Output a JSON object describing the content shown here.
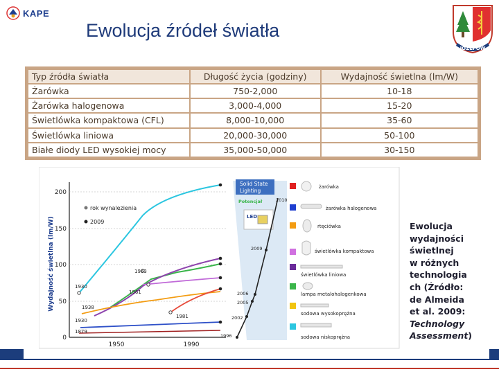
{
  "header": {
    "logo_text": "KAPE",
    "title": "Ewolucja źródeł światła",
    "crest_text": "JÓZEFÓW"
  },
  "table": {
    "headers": [
      "Typ źródła światła",
      "Długość życia (godziny)",
      "Wydajność świetlna (lm/W)"
    ],
    "rows": [
      [
        "Żarówka",
        "750-2,000",
        "10-18"
      ],
      [
        "Żarówka halogenowa",
        "3,000-4,000",
        "15-20"
      ],
      [
        "Świetlówka kompaktowa (CFL)",
        "8,000-10,000",
        "35-60"
      ],
      [
        "Świetlówka liniowa",
        "20,000-30,000",
        "50-100"
      ],
      [
        "Białe diody LED wysokiej mocy",
        "35,000-50,000",
        "30-150"
      ]
    ]
  },
  "chart_data": {
    "type": "line",
    "ylabel": "Wydajność świetlna (lm/W)",
    "ylim": [
      0,
      200
    ],
    "yticks": [
      "200",
      "150",
      "100",
      "50",
      "0"
    ],
    "xticks": [
      "1950",
      "1990"
    ],
    "legend": [
      "rok wynalezienia",
      "2009"
    ],
    "panel": {
      "title_line1": "Solid State",
      "title_line2": "Lighting",
      "potential_label": "Potencjał",
      "potential_year": "2010",
      "led_label": "LED",
      "years": [
        "2009",
        "2006",
        "2005",
        "2002",
        "1996"
      ]
    },
    "invention_years": [
      "1930",
      "1938",
      "1930",
      "1879",
      "1963",
      "1961",
      "1981"
    ],
    "lamp_labels": [
      "żarówka",
      "żarówka halogenowa",
      "rtęciówka",
      "świetlówka kompaktowa",
      "świetlówka liniowa",
      "lampa metalohalogenkowa",
      "sodowa wysokoprężna",
      "sodowa niskoprężna"
    ]
  },
  "caption": {
    "line1": "Ewolucja",
    "line2": "wydajności",
    "line3": "świetlnej",
    "line4": "w różnych",
    "line5": "technologia",
    "line6": "ch (Źródło:",
    "line7": "de Almeida",
    "line8": "et al. 2009:",
    "line9": "Technology",
    "line10": "Assessment",
    "line11": ")"
  },
  "colors": {
    "title": "#1f3b7a",
    "table_border": "#c9a585",
    "footer": "#1c3d7c",
    "accent_red": "#c0392b"
  }
}
